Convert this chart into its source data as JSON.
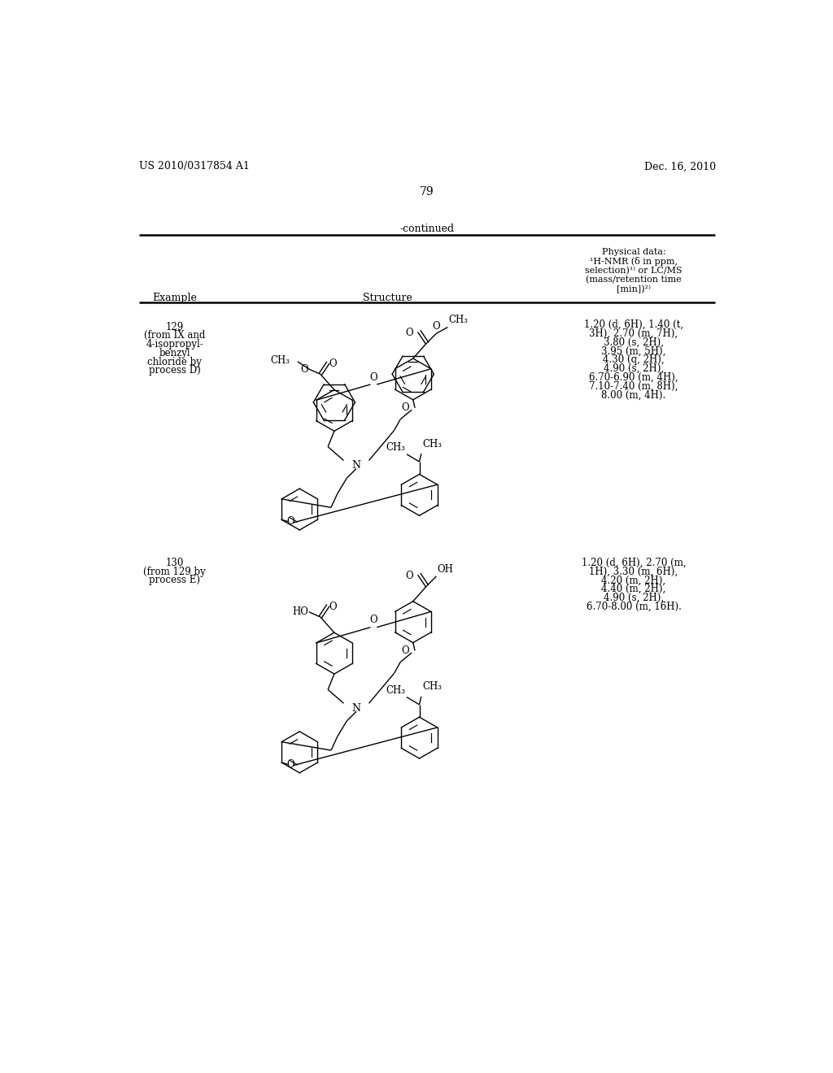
{
  "bg": "#ffffff",
  "header_left": "US 2010/0317854 A1",
  "header_right": "Dec. 16, 2010",
  "page_num": "79",
  "continued": "-continued",
  "phys_header": [
    "Physical data:",
    "¹H-NMR (δ in ppm,",
    "selection)¹⁾ or LC/MS",
    "(mass/retention time",
    "[min])²⁾"
  ],
  "ex129_label": [
    "129",
    "(from IX and",
    "4-isopropyl-",
    "benzyl",
    "chloride by",
    "process D)"
  ],
  "ex129_nmr": [
    "1.20 (d, 6H), 1.40 (t,",
    "3H), 2.70 (m, 7H),",
    "3.80 (s, 2H),",
    "3.95 (m, 5H),",
    "4.30 (q, 2H),",
    "4.90 (s, 2H),",
    "6.70-6.90 (m, 4H),",
    "7.10-7.40 (m, 8H),",
    "8.00 (m, 4H)."
  ],
  "ex130_label": [
    "130",
    "(from 129 by",
    "process E)"
  ],
  "ex130_nmr": [
    "1.20 (d, 6H), 2.70 (m,",
    "1H), 3.30 (m, 6H),",
    "4.20 (m, 2H),",
    "4.40 (m, 2H),",
    "4.90 (s, 2H),",
    "6.70-8.00 (m, 16H)."
  ]
}
